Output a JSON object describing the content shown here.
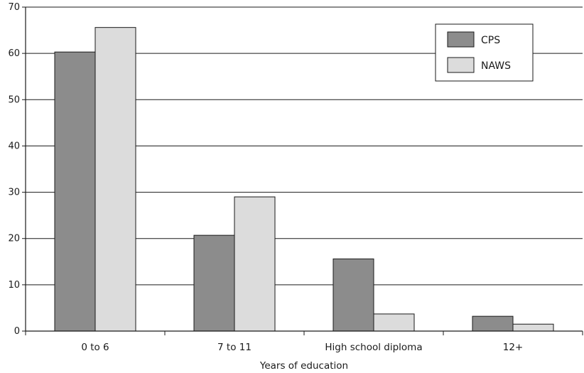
{
  "chart_data": {
    "type": "bar",
    "title": "",
    "xlabel": "Years of education",
    "ylabel": "",
    "ylim": [
      0,
      70
    ],
    "yticks": [
      0,
      10,
      20,
      30,
      40,
      50,
      60,
      70
    ],
    "categories": [
      "0 to 6",
      "7 to 11",
      "High school diploma",
      "12+"
    ],
    "series": [
      {
        "name": "CPS",
        "color": "#8c8c8c",
        "values": [
          60.3,
          20.7,
          15.6,
          3.2
        ]
      },
      {
        "name": "NAWS",
        "color": "#dcdcdc",
        "values": [
          65.6,
          29.0,
          3.7,
          1.5
        ]
      }
    ],
    "grid": true,
    "legend_position": "top-right"
  }
}
